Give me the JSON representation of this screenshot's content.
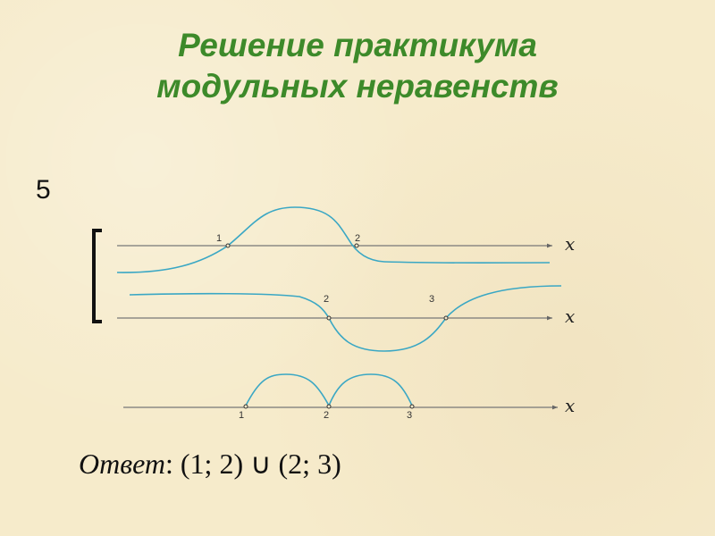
{
  "title_line1": "Решение практикума",
  "title_line2": "модульных неравенств",
  "problem_number": "5",
  "diagram": {
    "axis_label": "x",
    "line1_points": [
      "1",
      "2"
    ],
    "line2_points": [
      "2",
      "3"
    ],
    "line3_points": [
      "1",
      "2",
      "3"
    ],
    "curve_color": "#3aa7c4",
    "axis_color": "#777777"
  },
  "answer": {
    "word": "Ответ",
    "expression": ": (1; 2) ∪ (2; 3)"
  }
}
